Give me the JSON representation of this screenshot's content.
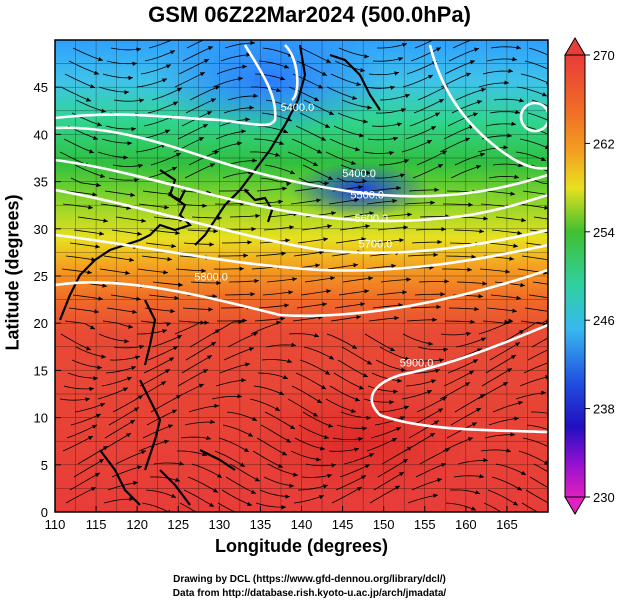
{
  "title": "GSM 06Z22Mar2024 (500.0hPa)",
  "x_axis": {
    "label": "Longitude (degrees)",
    "range": [
      110,
      170
    ],
    "ticks": [
      "110",
      "115",
      "120",
      "125",
      "130",
      "135",
      "140",
      "145",
      "150",
      "155",
      "160",
      "165"
    ],
    "tick_values": [
      110,
      115,
      120,
      125,
      130,
      135,
      140,
      145,
      150,
      155,
      160,
      165
    ]
  },
  "y_axis": {
    "label": "Latitude  (degrees)",
    "range": [
      0,
      50
    ],
    "ticks": [
      "0",
      "5",
      "10",
      "15",
      "20",
      "25",
      "30",
      "35",
      "40",
      "45"
    ],
    "tick_values": [
      0,
      5,
      10,
      15,
      20,
      25,
      30,
      35,
      40,
      45
    ]
  },
  "colorbar": {
    "range": [
      230,
      270
    ],
    "labels": [
      "270",
      "262",
      "254",
      "246",
      "238",
      "230"
    ],
    "label_values": [
      270,
      262,
      254,
      246,
      238,
      230
    ]
  },
  "contour_labels": [
    {
      "text": "5400.0",
      "lon": 139.5,
      "lat": 42.5
    },
    {
      "text": "5400.0",
      "lon": 147.0,
      "lat": 35.5
    },
    {
      "text": "5500.0",
      "lon": 148.0,
      "lat": 33.2
    },
    {
      "text": "5600.0",
      "lon": 148.5,
      "lat": 30.7
    },
    {
      "text": "5700.0",
      "lon": 149.0,
      "lat": 28.0
    },
    {
      "text": "5800.0",
      "lon": 129.0,
      "lat": 24.5
    },
    {
      "text": "5900.0",
      "lon": 154.0,
      "lat": 15.4
    }
  ],
  "colors": {
    "background": "#ffffff",
    "contour": "#ffffff",
    "streamline": "#000000"
  },
  "credits": {
    "line1": "Drawing by DCL (https://www.gfd-dennou.org/library/dcl/)",
    "line2": "Data from http://database.rish.kyoto-u.ac.jp/arch/jmadata/"
  }
}
